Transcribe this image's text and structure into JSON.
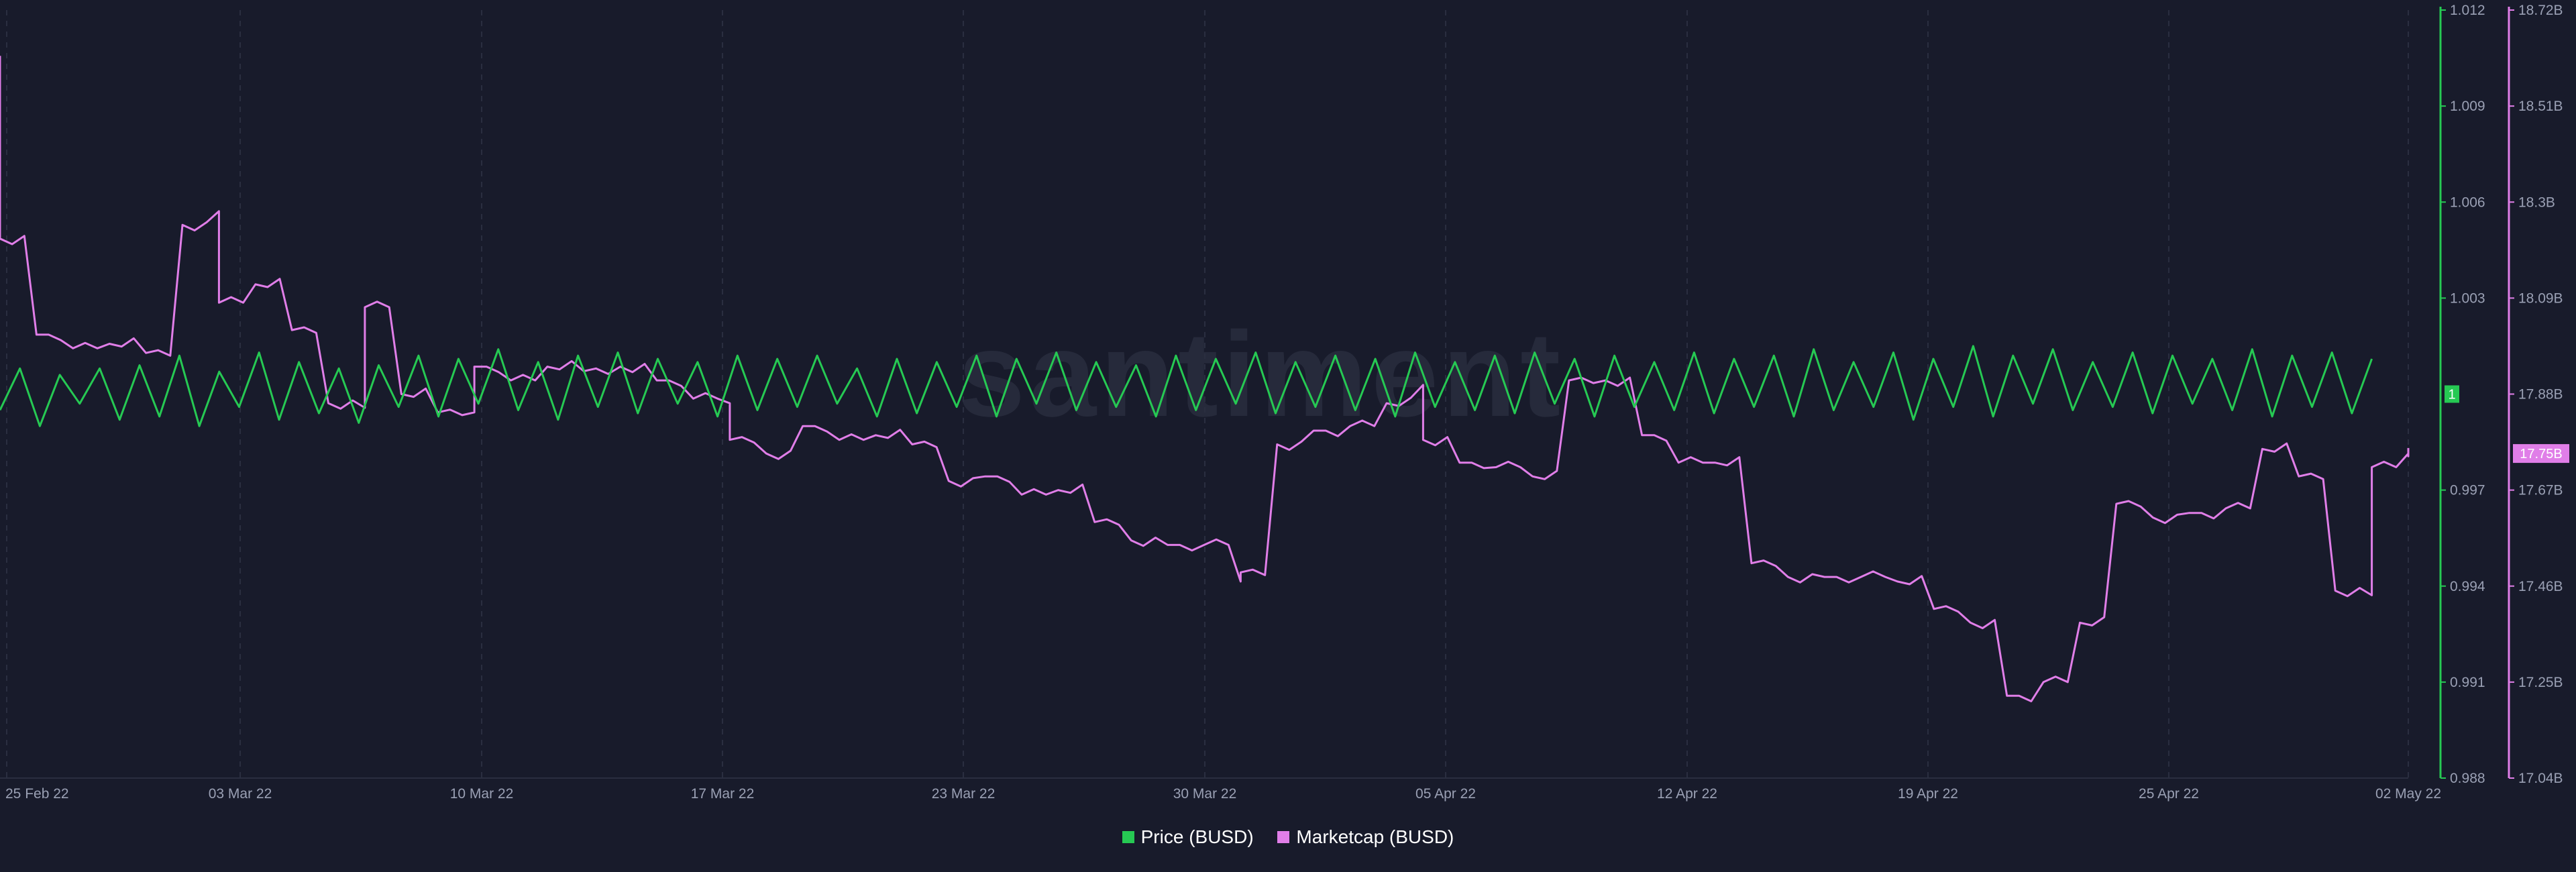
{
  "watermark": "santiment",
  "chart_data": {
    "type": "line",
    "x_start": "2022-02-25",
    "x_end": "2022-05-02",
    "x_ticks": [
      "25 Feb 22",
      "03 Mar 22",
      "10 Mar 22",
      "17 Mar 22",
      "23 Mar 22",
      "30 Mar 22",
      "05 Apr 22",
      "12 Apr 22",
      "19 Apr 22",
      "25 Apr 22",
      "02 May 22"
    ],
    "y_left": {
      "min": 0.988,
      "max": 1.012,
      "ticks": [
        "1.012",
        "1.009",
        "1.006",
        "1.003",
        "0.997",
        "0.994",
        "0.991",
        "0.988"
      ]
    },
    "y_right": {
      "min": 17.04,
      "max": 18.72,
      "ticks": [
        "18.72B",
        "18.51B",
        "18.3B",
        "18.09B",
        "17.88B",
        "17.67B",
        "17.46B",
        "17.25B",
        "17.04B"
      ]
    },
    "series": [
      {
        "name": "Price (BUSD)",
        "color": "#26c953",
        "axis": "left",
        "last_value_label": "1",
        "values": [
          0.9995,
          1.0008,
          0.999,
          1.0006,
          0.9997,
          1.0008,
          0.9992,
          1.0009,
          0.9993,
          1.0012,
          0.999,
          1.0007,
          0.9996,
          1.0013,
          0.9992,
          1.001,
          0.9994,
          1.0008,
          0.9991,
          1.0009,
          0.9996,
          1.0012,
          0.9993,
          1.0011,
          0.9997,
          1.0014,
          0.9995,
          1.001,
          0.9992,
          1.0012,
          0.9996,
          1.0013,
          0.9994,
          1.0011,
          0.9997,
          1.001,
          0.9993,
          1.0012,
          0.9995,
          1.0011,
          0.9996,
          1.0012,
          0.9997,
          1.0008,
          0.9993,
          1.0011,
          0.9994,
          1.001,
          0.9996,
          1.0012,
          0.9993,
          1.0011,
          0.9997,
          1.0013,
          0.9995,
          1.001,
          0.9996,
          1.0009,
          0.9993,
          1.0012,
          0.9995,
          1.0011,
          0.9997,
          1.0013,
          0.9994,
          1.001,
          0.9996,
          1.0012,
          0.9995,
          1.0011,
          0.9993,
          1.0013,
          0.9996,
          1.001,
          0.9995,
          1.0012,
          0.9994,
          1.0013,
          0.9997,
          1.0011,
          0.9993,
          1.0012,
          0.9996,
          1.001,
          0.9995,
          1.0013,
          0.9994,
          1.0011,
          0.9996,
          1.0012,
          0.9993,
          1.0014,
          0.9995,
          1.001,
          0.9996,
          1.0013,
          0.9992,
          1.0011,
          0.9996,
          1.0015,
          0.9993,
          1.0012,
          0.9997,
          1.0014,
          0.9995,
          1.001,
          0.9996,
          1.0013,
          0.9994,
          1.0012,
          0.9997,
          1.0011,
          0.9995,
          1.0014,
          0.9993,
          1.0012,
          0.9996,
          1.0013,
          0.9994,
          1.0011
        ],
        "note_values": "approximate, read from chart"
      },
      {
        "name": "Marketcap (BUSD)",
        "color": "#e07ee8",
        "axis": "right",
        "unit": "B",
        "last_value_label": "17.75B",
        "points": [
          [
            "2022-02-25",
            18.62
          ],
          [
            "2022-02-25",
            18.22
          ],
          [
            "2022-02-26",
            18.01
          ],
          [
            "2022-02-27",
            17.98
          ],
          [
            "2022-02-28",
            17.99
          ],
          [
            "2022-03-01",
            17.97
          ],
          [
            "2022-03-02",
            18.25
          ],
          [
            "2022-03-03",
            18.28
          ],
          [
            "2022-03-03",
            18.08
          ],
          [
            "2022-03-04",
            18.12
          ],
          [
            "2022-03-05",
            18.02
          ],
          [
            "2022-03-06",
            17.86
          ],
          [
            "2022-03-07",
            17.85
          ],
          [
            "2022-03-07",
            18.07
          ],
          [
            "2022-03-08",
            17.88
          ],
          [
            "2022-03-09",
            17.84
          ],
          [
            "2022-03-10",
            17.84
          ],
          [
            "2022-03-10",
            17.94
          ],
          [
            "2022-03-11",
            17.91
          ],
          [
            "2022-03-12",
            17.94
          ],
          [
            "2022-03-13",
            17.93
          ],
          [
            "2022-03-14",
            17.94
          ],
          [
            "2022-03-15",
            17.91
          ],
          [
            "2022-03-16",
            17.87
          ],
          [
            "2022-03-17",
            17.86
          ],
          [
            "2022-03-17",
            17.78
          ],
          [
            "2022-03-18",
            17.75
          ],
          [
            "2022-03-19",
            17.81
          ],
          [
            "2022-03-20",
            17.78
          ],
          [
            "2022-03-21",
            17.79
          ],
          [
            "2022-03-22",
            17.77
          ],
          [
            "2022-03-23",
            17.69
          ],
          [
            "2022-03-24",
            17.7
          ],
          [
            "2022-03-25",
            17.66
          ],
          [
            "2022-03-26",
            17.67
          ],
          [
            "2022-03-27",
            17.6
          ],
          [
            "2022-03-28",
            17.56
          ],
          [
            "2022-03-29",
            17.55
          ],
          [
            "2022-03-30",
            17.55
          ],
          [
            "2022-03-31",
            17.47
          ],
          [
            "2022-03-31",
            17.49
          ],
          [
            "2022-04-01",
            17.77
          ],
          [
            "2022-04-02",
            17.8
          ],
          [
            "2022-04-03",
            17.81
          ],
          [
            "2022-04-04",
            17.86
          ],
          [
            "2022-04-05",
            17.9
          ],
          [
            "2022-04-05",
            17.78
          ],
          [
            "2022-04-06",
            17.73
          ],
          [
            "2022-04-07",
            17.72
          ],
          [
            "2022-04-08",
            17.7
          ],
          [
            "2022-04-09",
            17.91
          ],
          [
            "2022-04-10",
            17.91
          ],
          [
            "2022-04-11",
            17.79
          ],
          [
            "2022-04-12",
            17.73
          ],
          [
            "2022-04-13",
            17.73
          ],
          [
            "2022-04-14",
            17.51
          ],
          [
            "2022-04-15",
            17.48
          ],
          [
            "2022-04-16",
            17.48
          ],
          [
            "2022-04-17",
            17.48
          ],
          [
            "2022-04-18",
            17.47
          ],
          [
            "2022-04-19",
            17.41
          ],
          [
            "2022-04-20",
            17.38
          ],
          [
            "2022-04-21",
            17.22
          ],
          [
            "2022-04-22",
            17.25
          ],
          [
            "2022-04-23",
            17.38
          ],
          [
            "2022-04-24",
            17.64
          ],
          [
            "2022-04-25",
            17.61
          ],
          [
            "2022-04-26",
            17.62
          ],
          [
            "2022-04-27",
            17.63
          ],
          [
            "2022-04-28",
            17.76
          ],
          [
            "2022-04-29",
            17.7
          ],
          [
            "2022-04-30",
            17.45
          ],
          [
            "2022-05-01",
            17.44
          ],
          [
            "2022-05-01",
            17.72
          ],
          [
            "2022-05-02",
            17.75
          ]
        ],
        "note_values": "approximate, read from chart"
      }
    ],
    "legend": {
      "placement": "bottom-center",
      "entries": [
        "Price (BUSD)",
        "Marketcap (BUSD)"
      ]
    },
    "grid": "vertical dashed"
  }
}
